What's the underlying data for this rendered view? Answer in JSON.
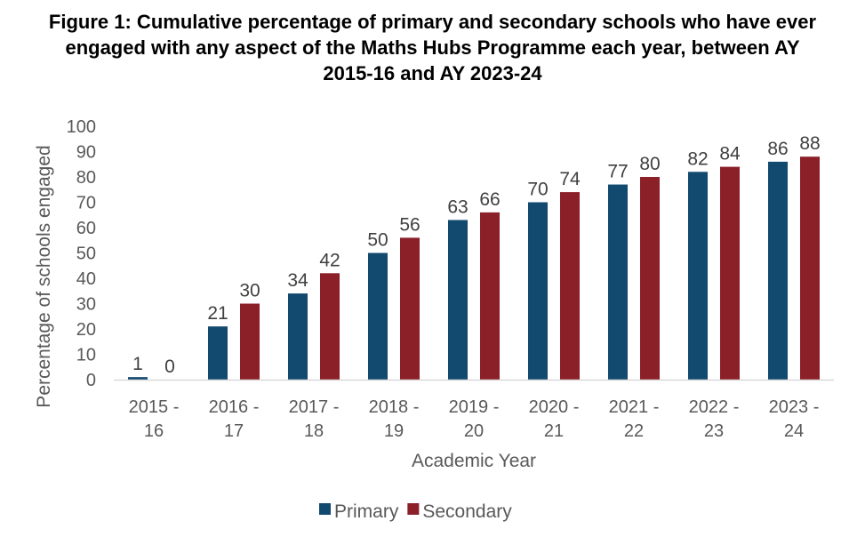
{
  "chart_data": {
    "type": "bar",
    "title_lines": [
      "Figure 1: Cumulative percentage of primary and secondary schools who have ever",
      "engaged with any aspect of the Maths Hubs Programme each year, between AY",
      "2015-16 and AY 2023-24"
    ],
    "xlabel": "Academic Year",
    "ylabel": "Percentage of schools engaged",
    "categories": [
      [
        "2015 -",
        "16"
      ],
      [
        "2016 -",
        "17"
      ],
      [
        "2017 -",
        "18"
      ],
      [
        "2018 -",
        "19"
      ],
      [
        "2019 -",
        "20"
      ],
      [
        "2020 -",
        "21"
      ],
      [
        "2021 -",
        "22"
      ],
      [
        "2022 -",
        "23"
      ],
      [
        "2023 -",
        "24"
      ]
    ],
    "series": [
      {
        "name": "Primary",
        "color": "#12496f",
        "values": [
          1,
          21,
          34,
          50,
          63,
          70,
          77,
          82,
          86
        ]
      },
      {
        "name": "Secondary",
        "color": "#8b2029",
        "values": [
          0,
          30,
          42,
          56,
          66,
          74,
          80,
          84,
          88
        ]
      }
    ],
    "ylim": [
      0,
      100
    ],
    "yticks": [
      0,
      10,
      20,
      30,
      40,
      50,
      60,
      70,
      80,
      90,
      100
    ],
    "grid": false,
    "legend_position": "bottom-center"
  }
}
